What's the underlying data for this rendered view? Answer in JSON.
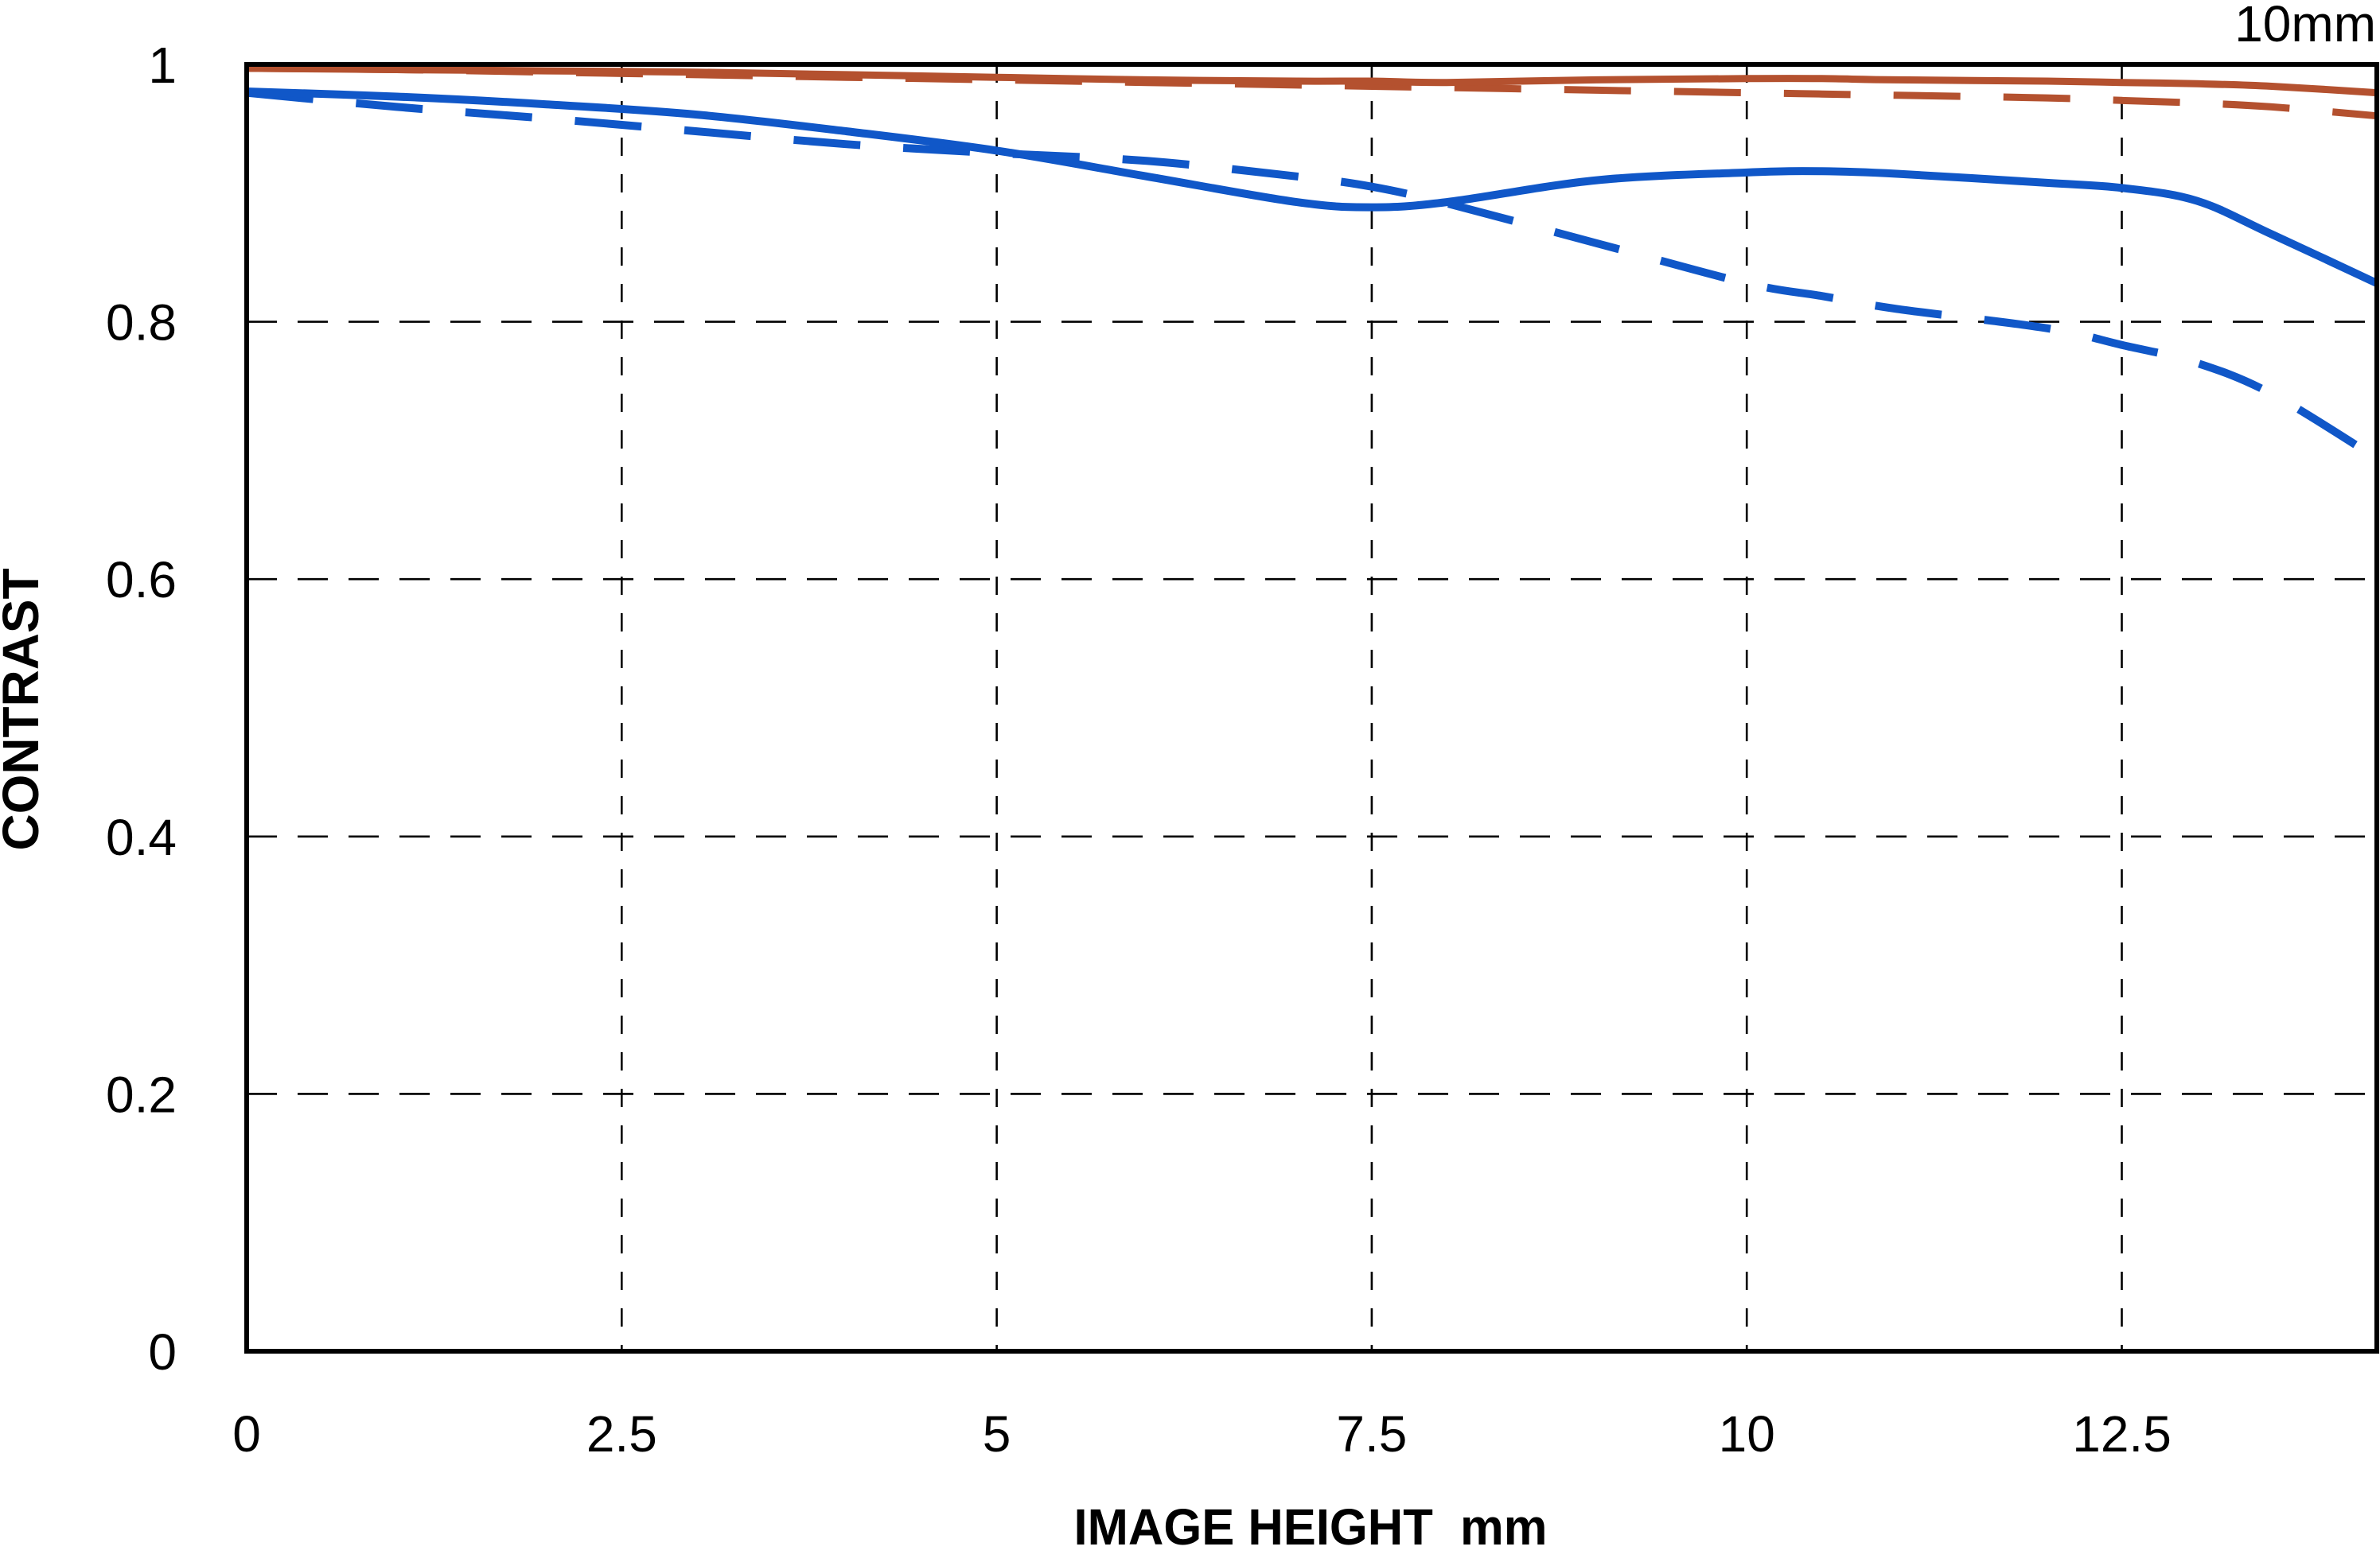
{
  "chart_data": {
    "type": "line",
    "title": "10mm",
    "xlabel": "IMAGE HEIGHT  mm",
    "ylabel": "CONTRAST",
    "xlim": [
      0,
      14.2
    ],
    "ylim": [
      0,
      1
    ],
    "grid": "dashed-black-at-every-tick",
    "legend_position": "none",
    "frame_color": "#000000",
    "x_ticks": [
      {
        "v": 0,
        "label": "0"
      },
      {
        "v": 2.5,
        "label": "2.5"
      },
      {
        "v": 5,
        "label": "5"
      },
      {
        "v": 7.5,
        "label": "7.5"
      },
      {
        "v": 10,
        "label": "10"
      },
      {
        "v": 12.5,
        "label": "12.5"
      }
    ],
    "y_ticks": [
      {
        "v": 0,
        "label": "0"
      },
      {
        "v": 0.2,
        "label": "0.2"
      },
      {
        "v": 0.4,
        "label": "0.4"
      },
      {
        "v": 0.6,
        "label": "0.6"
      },
      {
        "v": 0.8,
        "label": "0.8"
      },
      {
        "v": 1,
        "label": "1"
      }
    ],
    "x": [
      0,
      1,
      2,
      3,
      4,
      5,
      6,
      7,
      7.5,
      8,
      9,
      10,
      10.5,
      11,
      12,
      12.5,
      13,
      13.5,
      14.2
    ],
    "series": [
      {
        "name": "red-dashed",
        "color": "#b4512f",
        "style": "dashed",
        "values": [
          0.997,
          0.996,
          0.994,
          0.992,
          0.99,
          0.988,
          0.986,
          0.984,
          0.983,
          0.982,
          0.98,
          0.978,
          0.977,
          0.976,
          0.974,
          0.972,
          0.97,
          0.967,
          0.96
        ]
      },
      {
        "name": "red-solid",
        "color": "#b4512f",
        "style": "solid",
        "values": [
          0.997,
          0.996,
          0.995,
          0.994,
          0.992,
          0.99,
          0.988,
          0.987,
          0.987,
          0.986,
          0.988,
          0.989,
          0.989,
          0.988,
          0.987,
          0.986,
          0.985,
          0.983,
          0.978
        ]
      },
      {
        "name": "blue-dashed",
        "color": "#1057c8",
        "style": "dashed",
        "values": [
          0.978,
          0.967,
          0.958,
          0.948,
          0.938,
          0.931,
          0.925,
          0.913,
          0.905,
          0.892,
          0.861,
          0.83,
          0.82,
          0.81,
          0.795,
          0.782,
          0.768,
          0.744,
          0.694
        ]
      },
      {
        "name": "blue-solid",
        "color": "#1057c8",
        "style": "solid",
        "values": [
          0.979,
          0.975,
          0.969,
          0.961,
          0.948,
          0.933,
          0.913,
          0.893,
          0.889,
          0.893,
          0.91,
          0.916,
          0.917,
          0.915,
          0.908,
          0.904,
          0.894,
          0.868,
          0.83
        ]
      }
    ]
  }
}
